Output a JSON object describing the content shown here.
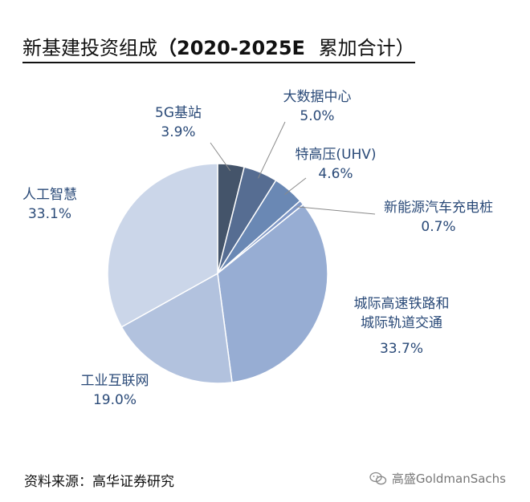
{
  "title": {
    "main": "新基建投资组成",
    "period": "（2020-2025E",
    "suffix": "累加合计）"
  },
  "chart_data": {
    "type": "pie",
    "title": "新基建投资组成（2020-2025E 累加合计）",
    "categories": [
      "5G基站",
      "大数据中心",
      "特高压(UHV)",
      "新能源汽车充电桩",
      "城际高速铁路和城际轨道交通",
      "工业互联网",
      "人工智慧"
    ],
    "labels_display": [
      [
        "5G基站"
      ],
      [
        "大数据中心"
      ],
      [
        "特高压(UHV)"
      ],
      [
        "新能源汽车充电桩"
      ],
      [
        "城际高速铁路和",
        "城际轨道交通"
      ],
      [
        "工业互联网"
      ],
      [
        "人工智慧"
      ]
    ],
    "values": [
      3.9,
      5.0,
      4.6,
      0.7,
      33.7,
      19.0,
      33.1
    ],
    "value_labels": [
      "3.9%",
      "5.0%",
      "4.6%",
      "0.7%",
      "33.7%",
      "19.0%",
      "33.1%"
    ],
    "colors": [
      "#44546a",
      "#566d92",
      "#6a88b4",
      "#8098c6",
      "#97add3",
      "#b2c2de",
      "#cbd6e9"
    ],
    "start_angle": "12 o'clock",
    "direction": "clockwise"
  },
  "footer": {
    "source": "资料来源：高华证券研究",
    "watermark": "高盛GoldmanSachs",
    "watermark_icon": "wechat-icon"
  }
}
